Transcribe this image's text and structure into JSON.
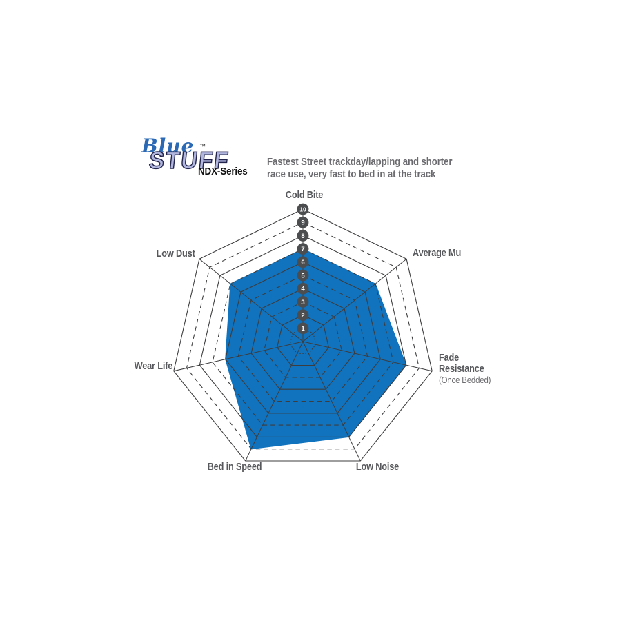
{
  "page": {
    "background": "#ffffff"
  },
  "header": {
    "logo": {
      "blue": "Blue",
      "stuff": "STUFF",
      "tm": "™",
      "series": "NDX-Series",
      "blue_color": "#2b69b4",
      "stuff_fill_color": "#b1b6de",
      "stuff_outline_color": "#23254c"
    },
    "description_line1": "Fastest Street trackday/lapping and shorter",
    "description_line2": "race use, very fast to bed in at the track"
  },
  "chart_data": {
    "type": "radar",
    "title": "BlueStuff NDX-Series brake pad performance ratings",
    "axes": [
      {
        "label": "Cold Bite",
        "value": 7
      },
      {
        "label": "Average Mu",
        "value": 7
      },
      {
        "label": "Fade Resistance",
        "sublabel": "(Once Bedded)",
        "value": 8
      },
      {
        "label": "Low Noise",
        "value": 8
      },
      {
        "label": "Bed in Speed",
        "value": 9
      },
      {
        "label": "Wear Life",
        "value": 6
      },
      {
        "label": "Low Dust",
        "value": 7
      }
    ],
    "series": [
      {
        "name": "BlueStuff NDX-Series",
        "values": [
          7,
          7,
          8,
          8,
          9,
          6,
          7
        ],
        "color": "#1173bd"
      }
    ],
    "scale": {
      "min": 1,
      "max": 10,
      "ticks": [
        1,
        2,
        3,
        4,
        5,
        6,
        7,
        8,
        9,
        10
      ],
      "tick_axis": "Cold Bite"
    },
    "grid": {
      "line_color": "#3d3c3e",
      "even_ring_style": "solid",
      "odd_ring_style": "dashed",
      "innermost_ring_style": "dotted",
      "marker_fill": "#4c4d4f",
      "marker_text_color": "#ffffff"
    },
    "legend": "none"
  }
}
